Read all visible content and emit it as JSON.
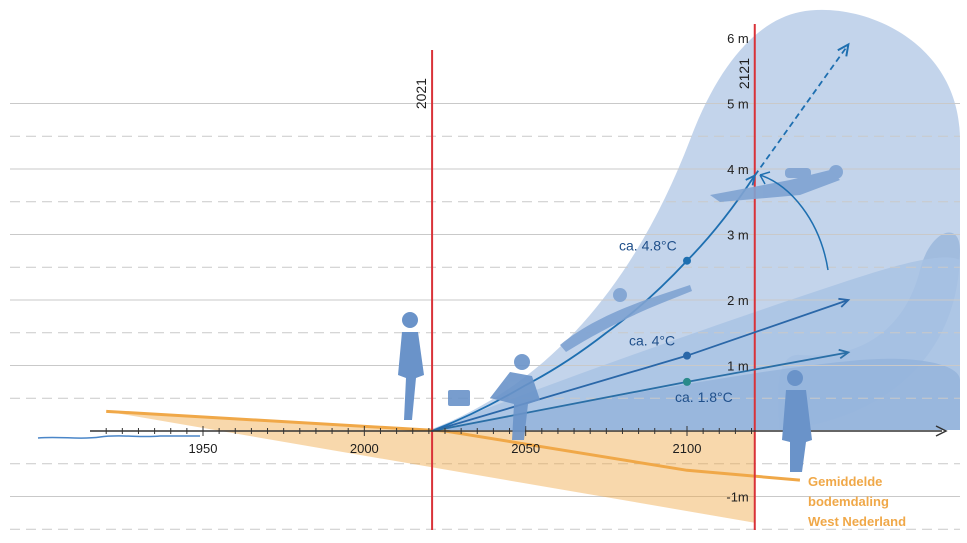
{
  "chart_data": {
    "type": "line",
    "x_ticks": [
      1950,
      2000,
      2050,
      2100
    ],
    "y_ticks": [
      {
        "value": 6,
        "label": "6 m"
      },
      {
        "value": 5,
        "label": "5 m"
      },
      {
        "value": 4,
        "label": "4 m"
      },
      {
        "value": 3,
        "label": "3 m"
      },
      {
        "value": 2,
        "label": "2 m"
      },
      {
        "value": 1,
        "label": "1 m"
      },
      {
        "value": -1,
        "label": "-1m"
      }
    ],
    "xlim": [
      1920,
      2180
    ],
    "ylim": [
      -1.5,
      6.5
    ],
    "year_markers": [
      {
        "year": 2021,
        "label": "2021"
      },
      {
        "year": 2121,
        "label": "2121"
      }
    ],
    "series": [
      {
        "label": "ca. 4.8°C",
        "color": "#1e6fb0",
        "points": [
          [
            2021,
            0
          ],
          [
            2050,
            0.7
          ],
          [
            2075,
            1.5
          ],
          [
            2100,
            2.6
          ],
          [
            2121,
            3.9
          ]
        ],
        "extension": [
          [
            2121,
            3.9
          ],
          [
            2150,
            5.9
          ]
        ],
        "marker": [
          2100,
          2.6
        ]
      },
      {
        "label": "ca. 4°C",
        "color": "#2a67a8",
        "points": [
          [
            2021,
            0
          ],
          [
            2100,
            1.15
          ],
          [
            2150,
            2.0
          ]
        ],
        "marker": [
          2100,
          1.15
        ]
      },
      {
        "label": "ca. 1.8°C",
        "color": "#2a6fa6",
        "points": [
          [
            2021,
            0
          ],
          [
            2100,
            0.75
          ],
          [
            2150,
            1.2
          ]
        ],
        "marker": [
          2100,
          0.75
        ]
      }
    ],
    "subsidence": {
      "label_lines": [
        "Gemiddelde",
        "bodemdaling",
        "West Nederland"
      ],
      "color": "#f0a848",
      "points": [
        [
          1920,
          0.3
        ],
        [
          2025,
          0
        ],
        [
          2100,
          -0.6
        ],
        [
          2135,
          -0.75
        ]
      ],
      "band_bottom": [
        [
          1920,
          0.3
        ],
        [
          2121,
          -1.4
        ]
      ]
    },
    "colors": {
      "wave": "#b8cde8",
      "wave_dark": "#9db9dd",
      "water_line": "#4a86c8",
      "marker_line": "#d93238",
      "figure": "#6a93c9"
    }
  }
}
